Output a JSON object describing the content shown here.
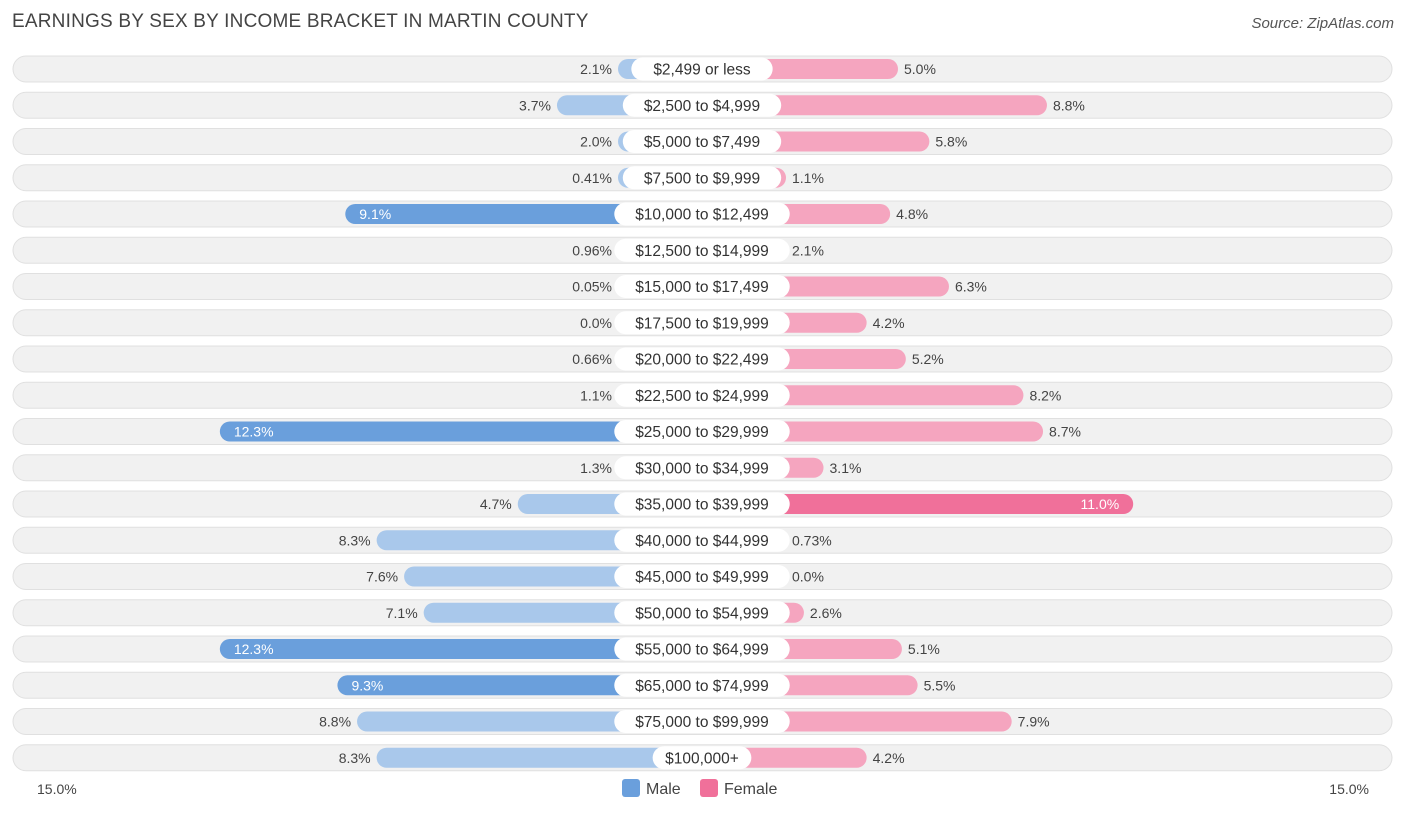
{
  "title": "EARNINGS BY SEX BY INCOME BRACKET IN MARTIN COUNTY",
  "source": "Source: ZipAtlas.com",
  "colors": {
    "male": "#6a9fdc",
    "male_light": "#a9c8eb",
    "female": "#f0709a",
    "female_light": "#f5a5bf"
  },
  "chart_data": {
    "type": "bar",
    "orientation": "horizontal-diverging",
    "title": "EARNINGS BY SEX BY INCOME BRACKET IN MARTIN COUNTY",
    "categories": [
      "$2,499 or less",
      "$2,500 to $4,999",
      "$5,000 to $7,499",
      "$7,500 to $9,999",
      "$10,000 to $12,499",
      "$12,500 to $14,999",
      "$15,000 to $17,499",
      "$17,500 to $19,999",
      "$20,000 to $22,499",
      "$22,500 to $24,999",
      "$25,000 to $29,999",
      "$30,000 to $34,999",
      "$35,000 to $39,999",
      "$40,000 to $44,999",
      "$45,000 to $49,999",
      "$50,000 to $54,999",
      "$55,000 to $64,999",
      "$65,000 to $74,999",
      "$75,000 to $99,999",
      "$100,000+"
    ],
    "series": [
      {
        "name": "Male",
        "values": [
          2.1,
          3.7,
          2.0,
          0.41,
          9.1,
          0.96,
          0.05,
          0.0,
          0.66,
          1.1,
          12.3,
          1.3,
          4.7,
          8.3,
          7.6,
          7.1,
          12.3,
          9.3,
          8.8,
          8.3
        ],
        "labels": [
          "2.1%",
          "3.7%",
          "2.0%",
          "0.41%",
          "9.1%",
          "0.96%",
          "0.05%",
          "0.0%",
          "0.66%",
          "1.1%",
          "12.3%",
          "1.3%",
          "4.7%",
          "8.3%",
          "7.6%",
          "7.1%",
          "12.3%",
          "9.3%",
          "8.8%",
          "8.3%"
        ]
      },
      {
        "name": "Female",
        "values": [
          5.0,
          8.8,
          5.8,
          1.1,
          4.8,
          2.1,
          6.3,
          4.2,
          5.2,
          8.2,
          8.7,
          3.1,
          11.0,
          0.73,
          0.0,
          2.6,
          5.1,
          5.5,
          7.9,
          4.2
        ],
        "labels": [
          "5.0%",
          "8.8%",
          "5.8%",
          "1.1%",
          "4.8%",
          "2.1%",
          "6.3%",
          "4.2%",
          "5.2%",
          "8.2%",
          "8.7%",
          "3.1%",
          "11.0%",
          "0.73%",
          "0.0%",
          "2.6%",
          "5.1%",
          "5.5%",
          "7.9%",
          "4.2%"
        ]
      }
    ],
    "xlim": [
      0,
      15.0
    ],
    "axis_labels": {
      "left": "15.0%",
      "right": "15.0%"
    },
    "legend": {
      "position": "bottom-center",
      "items": [
        "Male",
        "Female"
      ]
    }
  }
}
